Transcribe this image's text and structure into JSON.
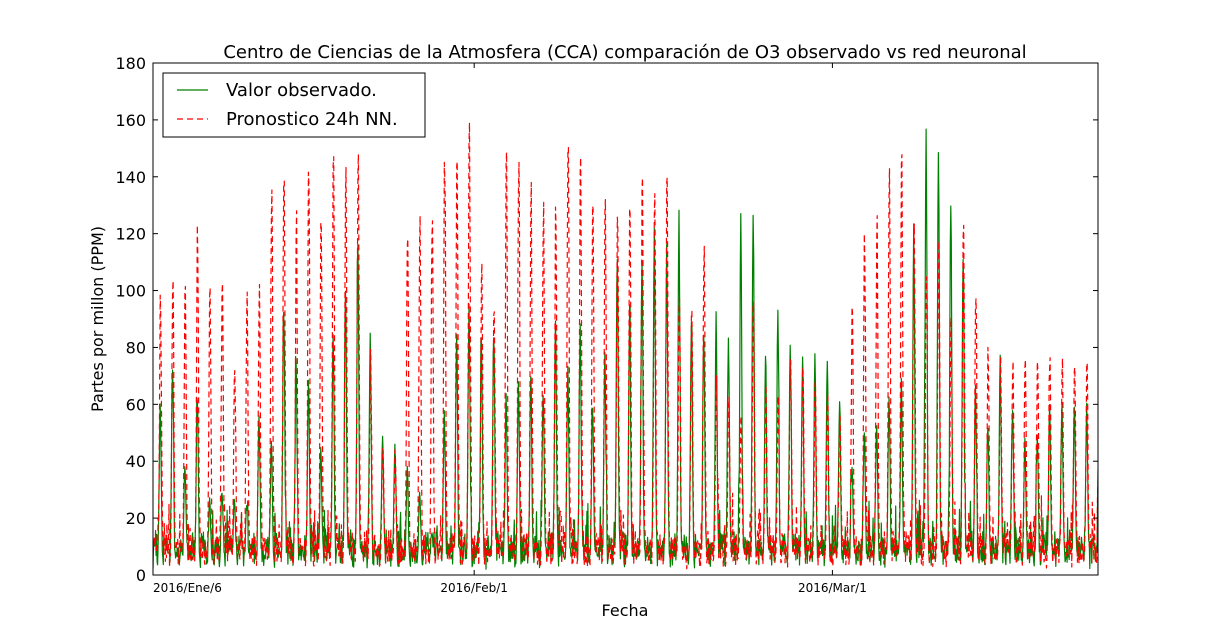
{
  "chart_data": {
    "type": "line",
    "title": "Centro de Ciencias de la Atmosfera (CCA) comparación de O3 observado vs red neuronal",
    "xlabel": "Fecha",
    "ylabel": "Partes por millon (PPM)",
    "ylim": [
      0,
      180
    ],
    "yticks": [
      "0",
      "20",
      "40",
      "60",
      "80",
      "100",
      "120",
      "140",
      "160",
      "180"
    ],
    "xticks": [
      {
        "day": 0,
        "label": "2016/Ene/6"
      },
      {
        "day": 26,
        "label": "2016/Feb/1"
      },
      {
        "day": 55,
        "label": "2016/Mar/1"
      }
    ],
    "xlim_days": [
      0,
      76.5
    ],
    "legend_position": "top-left",
    "grid": false,
    "series": [
      {
        "name": "Valor observado.",
        "color": "#008000",
        "style": "solid",
        "daily_peaks": [
          62,
          75,
          40,
          65,
          28,
          30,
          28,
          26,
          59,
          50,
          96,
          80,
          70,
          46,
          88,
          106,
          118,
          85,
          50,
          46,
          40,
          30,
          15,
          59,
          88,
          98,
          87,
          90,
          66,
          70,
          75,
          68,
          92,
          74,
          90,
          60,
          80,
          118,
          95,
          117,
          128,
          120,
          129,
          95,
          90,
          95,
          85,
          130,
          131,
          78,
          95,
          84,
          78,
          80,
          78,
          65,
          40,
          50,
          55,
          65,
          70,
          124,
          164,
          150,
          137,
          111,
          67,
          55,
          78,
          62,
          50,
          50,
          61
        ]
      },
      {
        "name": "Pronostico 24h NN.",
        "color": "#ff0000",
        "style": "dashed",
        "daily_peaks": [
          99,
          113,
          112,
          123,
          109,
          110,
          79,
          103,
          106,
          143,
          146,
          128,
          149,
          131,
          154,
          151,
          154,
          85,
          48,
          44,
          127,
          130,
          134,
          153,
          156,
          164,
          112,
          99,
          157,
          150,
          138,
          134,
          136,
          159,
          152,
          140,
          145,
          133,
          137,
          143,
          140,
          146,
          104,
          101,
          119,
          70,
          65,
          60,
          100,
          70,
          65,
          82,
          77,
          70,
          68,
          60,
          100,
          120,
          130,
          150,
          160,
          128,
          113,
          125,
          97,
          130,
          100,
          80
        ]
      }
    ]
  }
}
